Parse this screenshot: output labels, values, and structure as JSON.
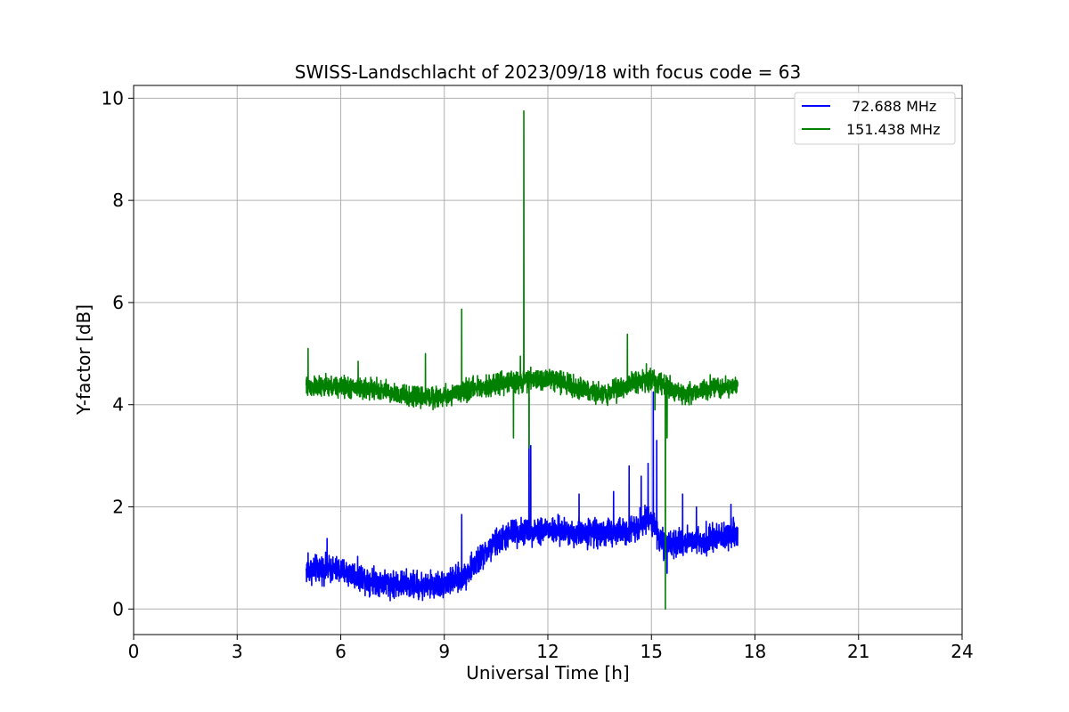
{
  "chart_data": {
    "type": "line",
    "title": "SWISS-Landschlacht of 2023/09/18 with focus code = 63",
    "xlabel": "Universal Time [h]",
    "ylabel": "Y-factor [dB]",
    "xlim": [
      0,
      24
    ],
    "ylim": [
      -0.5,
      10.25
    ],
    "xticks": [
      0,
      3,
      6,
      9,
      12,
      15,
      18,
      21,
      24
    ],
    "yticks": [
      0,
      2,
      4,
      6,
      8,
      10
    ],
    "grid": true,
    "legend_position": "top-right",
    "series": [
      {
        "name": "72.688 MHz",
        "color": "#0000ff",
        "noise": 0.13,
        "profile": [
          [
            5.0,
            0.75
          ],
          [
            5.5,
            0.8
          ],
          [
            6.0,
            0.75
          ],
          [
            6.5,
            0.65
          ],
          [
            7.0,
            0.55
          ],
          [
            7.5,
            0.5
          ],
          [
            8.0,
            0.48
          ],
          [
            8.5,
            0.45
          ],
          [
            9.0,
            0.5
          ],
          [
            9.5,
            0.6
          ],
          [
            10.0,
            0.95
          ],
          [
            10.5,
            1.3
          ],
          [
            11.0,
            1.5
          ],
          [
            11.5,
            1.55
          ],
          [
            12.0,
            1.55
          ],
          [
            12.5,
            1.5
          ],
          [
            13.0,
            1.5
          ],
          [
            13.5,
            1.5
          ],
          [
            14.0,
            1.5
          ],
          [
            14.5,
            1.6
          ],
          [
            15.0,
            1.8
          ],
          [
            15.25,
            1.35
          ],
          [
            15.5,
            1.2
          ],
          [
            16.0,
            1.35
          ],
          [
            16.5,
            1.35
          ],
          [
            17.0,
            1.4
          ],
          [
            17.5,
            1.5
          ]
        ],
        "spikes": [
          [
            5.05,
            1.1
          ],
          [
            5.6,
            1.38
          ],
          [
            9.5,
            1.85
          ],
          [
            11.45,
            4.15
          ],
          [
            11.5,
            3.2
          ],
          [
            12.9,
            2.25
          ],
          [
            13.9,
            2.3
          ],
          [
            14.35,
            2.8
          ],
          [
            14.7,
            2.6
          ],
          [
            14.9,
            2.85
          ],
          [
            15.05,
            4.25
          ],
          [
            15.15,
            3.3
          ],
          [
            15.35,
            0.95
          ],
          [
            15.45,
            0.7
          ],
          [
            15.9,
            2.25
          ],
          [
            16.3,
            2.0
          ],
          [
            17.3,
            2.05
          ]
        ]
      },
      {
        "name": "151.438 MHz",
        "color": "#008000",
        "noise": 0.1,
        "profile": [
          [
            5.0,
            4.35
          ],
          [
            6.0,
            4.35
          ],
          [
            7.0,
            4.3
          ],
          [
            8.0,
            4.15
          ],
          [
            9.0,
            4.15
          ],
          [
            10.0,
            4.35
          ],
          [
            11.0,
            4.45
          ],
          [
            12.0,
            4.5
          ],
          [
            12.5,
            4.45
          ],
          [
            13.0,
            4.3
          ],
          [
            13.5,
            4.2
          ],
          [
            14.0,
            4.3
          ],
          [
            14.5,
            4.45
          ],
          [
            15.0,
            4.5
          ],
          [
            15.5,
            4.35
          ],
          [
            16.0,
            4.2
          ],
          [
            16.5,
            4.3
          ],
          [
            17.0,
            4.35
          ],
          [
            17.5,
            4.35
          ]
        ],
        "spikes": [
          [
            5.05,
            5.1
          ],
          [
            6.5,
            4.85
          ],
          [
            8.45,
            5.0
          ],
          [
            9.5,
            5.87
          ],
          [
            11.0,
            3.35
          ],
          [
            11.2,
            4.95
          ],
          [
            11.3,
            9.75
          ],
          [
            11.45,
            3.15
          ],
          [
            14.3,
            5.38
          ],
          [
            14.85,
            4.8
          ],
          [
            15.1,
            3.9
          ],
          [
            15.4,
            0.0
          ],
          [
            15.45,
            3.35
          ]
        ]
      }
    ]
  }
}
